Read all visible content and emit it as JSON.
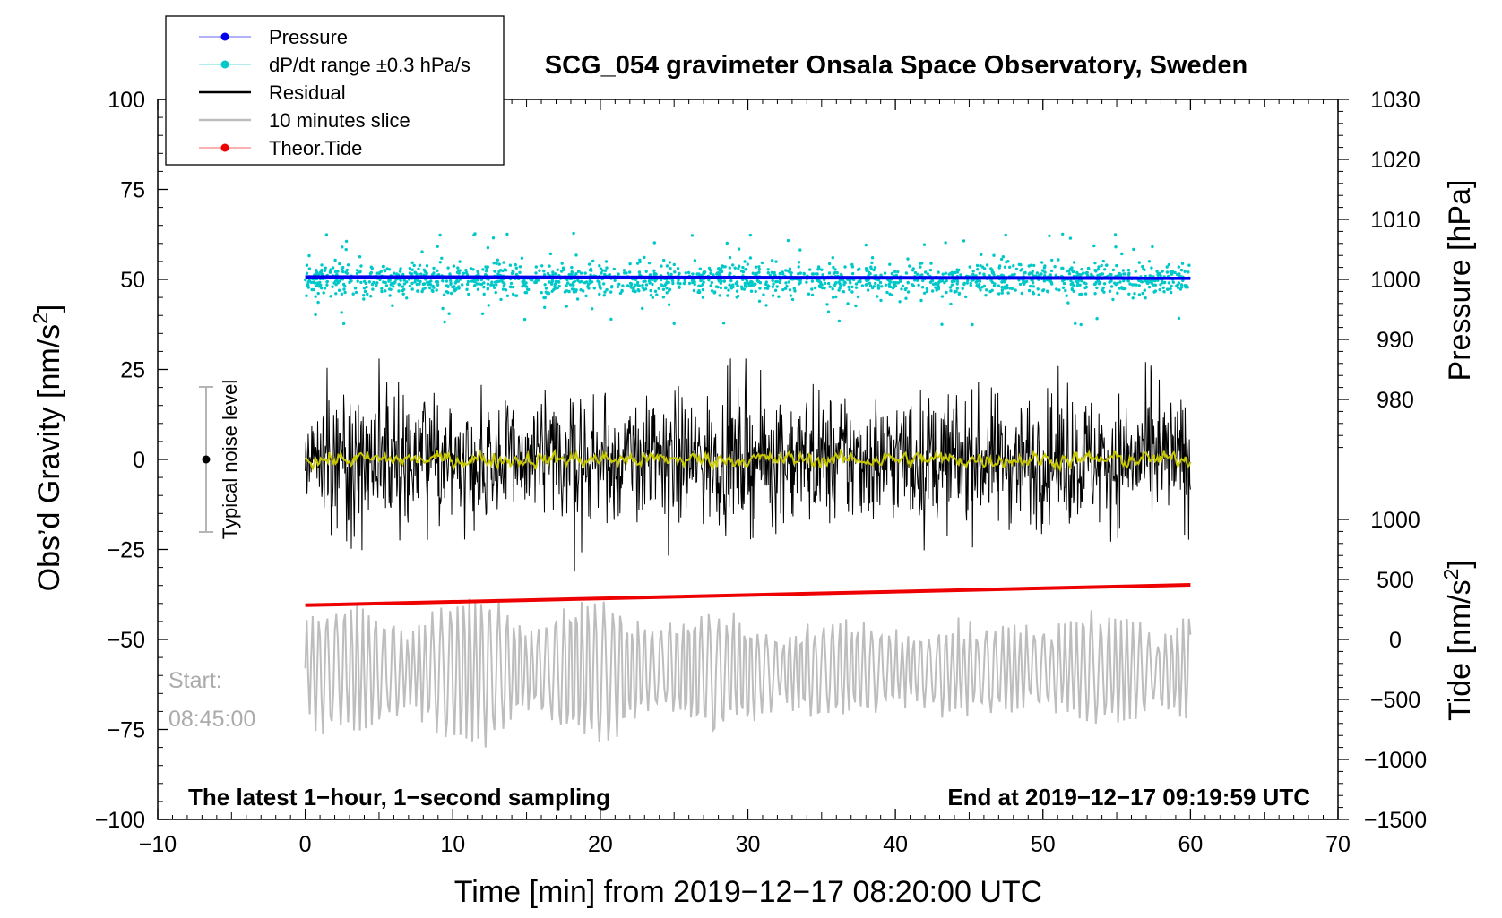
{
  "chart_data": {
    "type": "line",
    "title": "SCG_054 gravimeter Onsala Space Observatory, Sweden",
    "xlabel": "Time [min] from 2019−12−17 08:20:00 UTC",
    "ylabel_left": "Obs’d Gravity [nm/s",
    "ylabel_right_top": "Pressure [hPa]",
    "ylabel_right_bottom": "Tide [nm/s",
    "xlim": [
      -10,
      70
    ],
    "ylim_left": [
      -100,
      100
    ],
    "x_ticks": [
      "−10",
      "0",
      "10",
      "20",
      "30",
      "40",
      "50",
      "60",
      "70"
    ],
    "y_ticks_left": [
      "−100",
      "−75",
      "−50",
      "−25",
      "0",
      "25",
      "50",
      "75",
      "100"
    ],
    "pressure_axis": {
      "ticks": [
        "980",
        "990",
        "1000",
        "1010",
        "1020",
        "1030"
      ],
      "range_hpa": [
        970,
        1030
      ]
    },
    "tide_axis": {
      "ticks": [
        "−1500",
        "−1000",
        "−500",
        "0",
        "500",
        "1000"
      ],
      "range_nm_s2": [
        -1500,
        1500
      ]
    },
    "legend": {
      "placement": "top-left",
      "entries": [
        {
          "label": "Pressure",
          "color": "#0000ee",
          "marker": "dot"
        },
        {
          "label": "dP/dt range ±0.3 hPa/s",
          "color": "#00c8c8",
          "marker": "dot"
        },
        {
          "label": "Residual",
          "color": "#000000",
          "marker": "line"
        },
        {
          "label": "10 minutes slice",
          "color": "#bdbdbd",
          "marker": "line"
        },
        {
          "label": "Theor.Tide",
          "color": "#ee0000",
          "marker": "dot"
        }
      ]
    },
    "series": [
      {
        "name": "Pressure",
        "axis": "pressure",
        "x": [
          0,
          60
        ],
        "y": [
          1000.4,
          1000.2
        ],
        "color": "#0000ee"
      },
      {
        "name": "dP/dt range ±0.3 hPa/s",
        "axis": "pressure",
        "x_range": [
          0,
          60
        ],
        "center": 1000,
        "typical_spread": 3,
        "color": "#00c8c8"
      },
      {
        "name": "Residual",
        "axis": "gravity",
        "x_range": [
          0,
          60
        ],
        "center": 0,
        "typical_amplitude": 20,
        "color": "#000000"
      },
      {
        "name": "Residual (smoothed)",
        "axis": "gravity",
        "x_range": [
          0,
          60
        ],
        "center": 0,
        "color": "#c8c800"
      },
      {
        "name": "10 minutes slice",
        "axis": "gravity",
        "x_range": [
          0,
          60
        ],
        "y_range": [
          -80,
          -37
        ],
        "color": "#bdbdbd"
      },
      {
        "name": "Theor.Tide",
        "axis": "tide",
        "x": [
          0,
          60
        ],
        "y": [
          285,
          455
        ],
        "color": "#ee0000"
      }
    ],
    "noise_bar": {
      "label": "Typical noise level",
      "x": -7,
      "y_center": 0,
      "y_low": -20,
      "y_high": 20
    },
    "annotations": {
      "start_label": "Start:",
      "start_time": "08:45:00",
      "bottom_left": "The latest 1−hour, 1−second sampling",
      "bottom_right": "End at 2019−12−17 09:19:59 UTC"
    },
    "grid": false
  }
}
